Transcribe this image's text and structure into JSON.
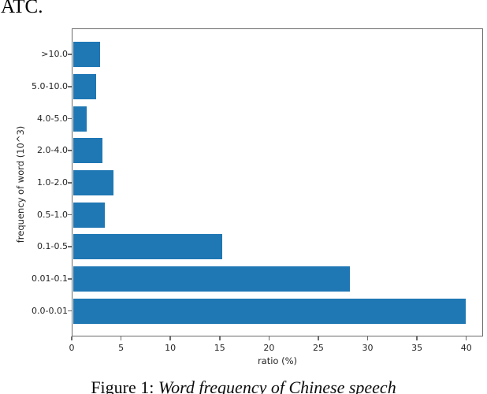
{
  "document": {
    "top_text": "ATC."
  },
  "caption": {
    "prefix": "Figure 1: ",
    "title": "Word frequency of Chinese speech"
  },
  "chart_data": {
    "type": "bar",
    "orientation": "horizontal",
    "title": "",
    "categories": [
      ">10.0",
      "5.0-10.0",
      "4.0-5.0",
      "2.0-4.0",
      "1.0-2.0",
      "0.5-1.0",
      "0.1-0.5",
      "0.01-0.1",
      "0.0-0.01"
    ],
    "values": [
      2.7,
      2.3,
      1.4,
      3.0,
      4.1,
      3.2,
      15.2,
      28.2,
      40.0
    ],
    "xlabel": "ratio (%)",
    "ylabel": "frequency of word (10^3)",
    "xlim": [
      0,
      41.7
    ],
    "xticks": [
      0,
      5,
      10,
      15,
      20,
      25,
      30,
      35,
      40
    ],
    "grid": false,
    "legend": null,
    "bar_color": "#1f77b4",
    "axis_color": "#6b6b6b",
    "text_color": "#262626"
  }
}
